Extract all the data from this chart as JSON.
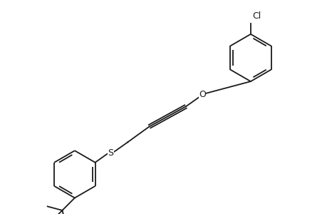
{
  "bg_color": "#ffffff",
  "line_color": "#1a1a1a",
  "line_width": 1.3,
  "figsize": [
    4.6,
    3.0
  ],
  "dpi": 100,
  "atoms": {
    "S_label": "S",
    "O_label": "O",
    "Cl_label": "Cl"
  },
  "font_size": 8.5,
  "xlim": [
    0,
    10
  ],
  "ylim": [
    0,
    6.5
  ]
}
